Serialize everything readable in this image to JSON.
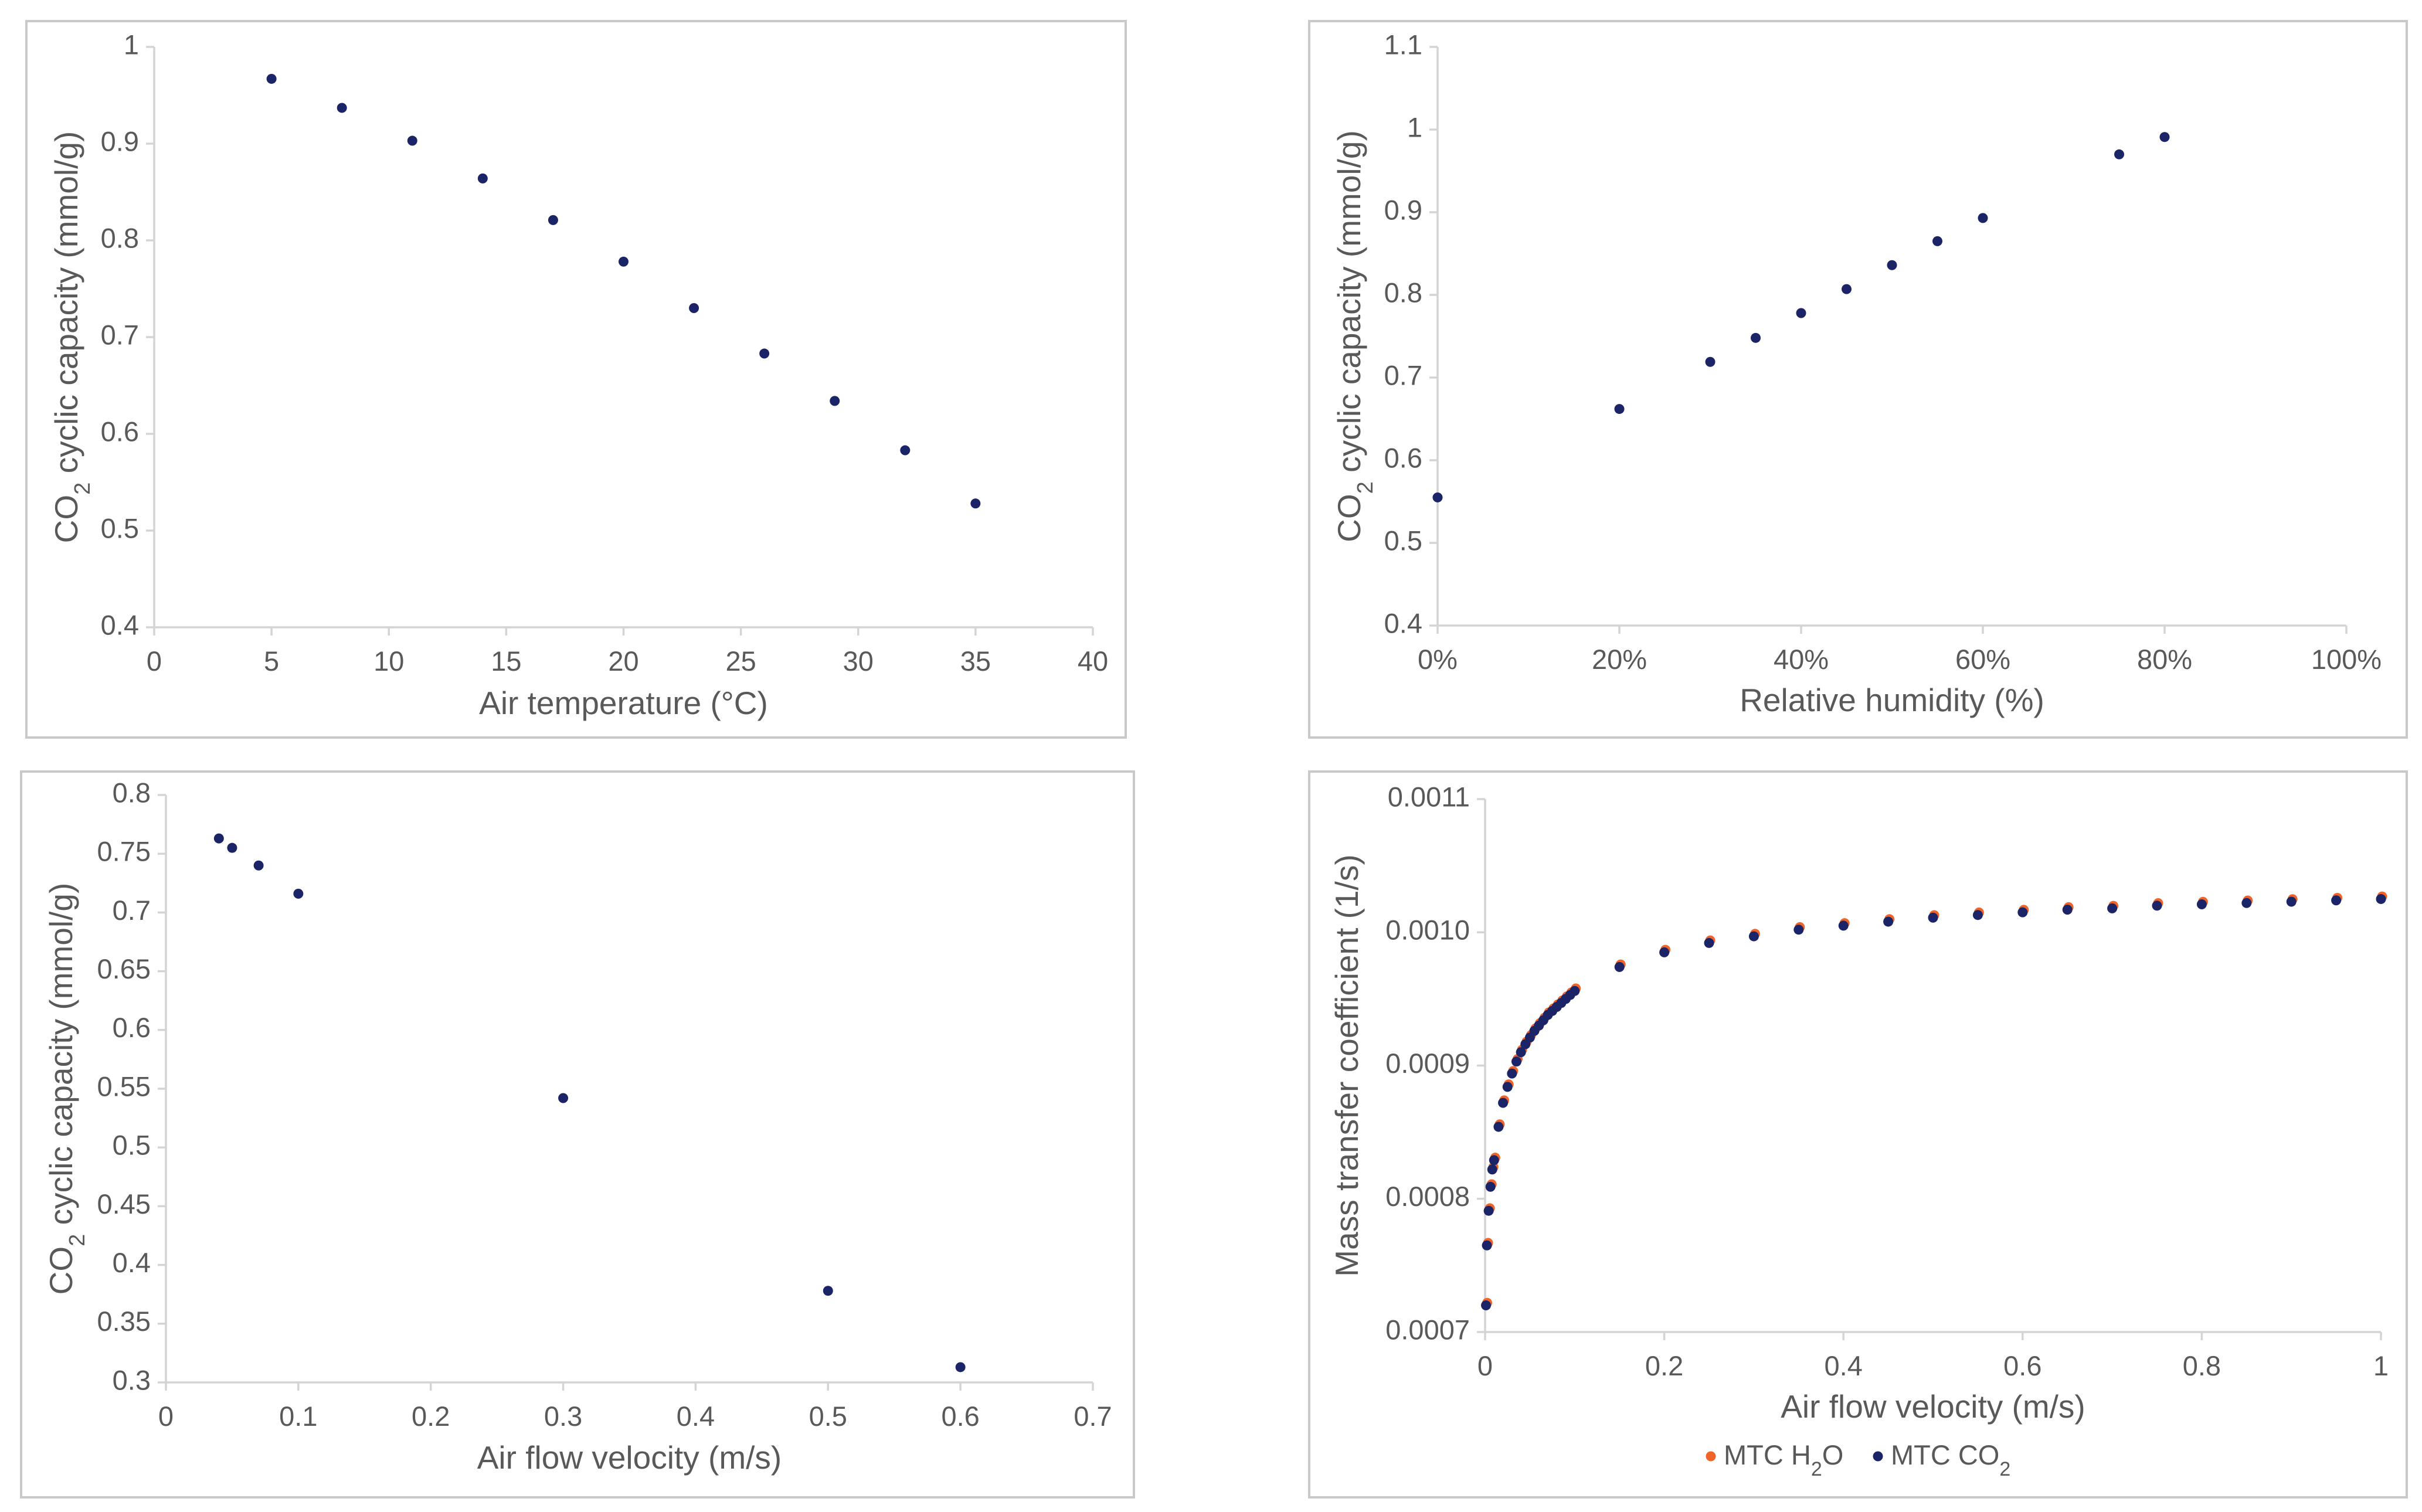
{
  "chart_data": [
    {
      "type": "scatter",
      "xlabel": "Air temperature (°C)",
      "ylabel": "CO2 cyclic capacity (mmol/g)",
      "xlim": [
        0,
        40
      ],
      "ylim": [
        0.4,
        1
      ],
      "xticks": [
        "0",
        "5",
        "10",
        "15",
        "20",
        "25",
        "30",
        "35",
        "40"
      ],
      "yticks": [
        "0.4",
        "0.5",
        "0.6",
        "0.7",
        "0.8",
        "0.9",
        "1"
      ],
      "series": [
        {
          "name": "CO2 cyclic capacity",
          "color": "#1a2466",
          "x": [
            5,
            8,
            11,
            14,
            17,
            20,
            23,
            26,
            29,
            32,
            35
          ],
          "y": [
            0.967,
            0.937,
            0.903,
            0.864,
            0.821,
            0.778,
            0.73,
            0.683,
            0.634,
            0.583,
            0.528
          ]
        }
      ]
    },
    {
      "type": "scatter",
      "xlabel": "Relative humidity (%)",
      "ylabel": "CO2 cyclic capacity (mmol/g)",
      "xlim": [
        0,
        100
      ],
      "ylim": [
        0.4,
        1.1
      ],
      "xticks": [
        "0%",
        "20%",
        "40%",
        "60%",
        "80%",
        "100%"
      ],
      "yticks": [
        "0.4",
        "0.5",
        "0.6",
        "0.7",
        "0.8",
        "0.9",
        "1",
        "1.1"
      ],
      "series": [
        {
          "name": "CO2 cyclic capacity",
          "color": "#1a2466",
          "x": [
            0,
            20,
            30,
            35,
            40,
            45,
            50,
            55,
            60,
            75,
            80
          ],
          "y": [
            0.555,
            0.662,
            0.719,
            0.748,
            0.778,
            0.807,
            0.836,
            0.865,
            0.893,
            0.97,
            0.991
          ]
        }
      ]
    },
    {
      "type": "scatter",
      "xlabel": "Air flow velocity (m/s)",
      "ylabel": "CO2 cyclic capacity (mmol/g)",
      "xlim": [
        0,
        0.7
      ],
      "ylim": [
        0.3,
        0.8
      ],
      "xticks": [
        "0",
        "0.1",
        "0.2",
        "0.3",
        "0.4",
        "0.5",
        "0.6",
        "0.7"
      ],
      "yticks": [
        "0.3",
        "0.35",
        "0.4",
        "0.45",
        "0.5",
        "0.55",
        "0.6",
        "0.65",
        "0.7",
        "0.75",
        "0.8"
      ],
      "series": [
        {
          "name": "CO2 cyclic capacity",
          "color": "#1a2466",
          "x": [
            0.04,
            0.05,
            0.07,
            0.1,
            0.3,
            0.5,
            0.6
          ],
          "y": [
            0.763,
            0.755,
            0.74,
            0.716,
            0.542,
            0.378,
            0.313
          ]
        }
      ]
    },
    {
      "type": "scatter",
      "xlabel": "Air flow velocity (m/s)",
      "ylabel": "Mass transfer coefficient (1/s)",
      "xlim": [
        0,
        1
      ],
      "ylim": [
        0.0007,
        0.0011
      ],
      "xticks": [
        "0",
        "0.2",
        "0.4",
        "0.6",
        "0.8",
        "1"
      ],
      "yticks": [
        "0.0007",
        "0.0008",
        "0.0009",
        "0.0010",
        "0.0011"
      ],
      "legend_position": "bottom",
      "series": [
        {
          "name": "MTC H2O",
          "color": "#f0642a",
          "x": [
            0.001,
            0.002,
            0.004,
            0.006,
            0.008,
            0.01,
            0.015,
            0.02,
            0.025,
            0.03,
            0.035,
            0.04,
            0.045,
            0.05,
            0.055,
            0.06,
            0.065,
            0.07,
            0.075,
            0.08,
            0.085,
            0.09,
            0.095,
            0.1,
            0.15,
            0.2,
            0.25,
            0.3,
            0.35,
            0.4,
            0.45,
            0.5,
            0.55,
            0.6,
            0.65,
            0.7,
            0.75,
            0.8,
            0.85,
            0.9,
            0.95,
            1.0
          ],
          "y": [
            0.000721,
            0.000766,
            0.000792,
            0.00081,
            0.000823,
            0.00083,
            0.000855,
            0.000873,
            0.000885,
            0.000895,
            0.000904,
            0.000911,
            0.000917,
            0.000922,
            0.000927,
            0.000931,
            0.000935,
            0.000939,
            0.000942,
            0.000945,
            0.000948,
            0.000951,
            0.000954,
            0.000957,
            0.000975,
            0.000986,
            0.000993,
            0.000998,
            0.001003,
            0.001006,
            0.001009,
            0.001012,
            0.001014,
            0.001016,
            0.001018,
            0.001019,
            0.001021,
            0.001022,
            0.001023,
            0.001024,
            0.001025,
            0.001026
          ]
        },
        {
          "name": "MTC CO2",
          "color": "#1a2466",
          "x": [
            0.001,
            0.002,
            0.004,
            0.006,
            0.008,
            0.01,
            0.015,
            0.02,
            0.025,
            0.03,
            0.035,
            0.04,
            0.045,
            0.05,
            0.055,
            0.06,
            0.065,
            0.07,
            0.075,
            0.08,
            0.085,
            0.09,
            0.095,
            0.1,
            0.15,
            0.2,
            0.25,
            0.3,
            0.35,
            0.4,
            0.45,
            0.5,
            0.55,
            0.6,
            0.65,
            0.7,
            0.75,
            0.8,
            0.85,
            0.9,
            0.95,
            1.0
          ],
          "y": [
            0.00072,
            0.000765,
            0.000791,
            0.000809,
            0.000822,
            0.000829,
            0.000854,
            0.000872,
            0.000884,
            0.000894,
            0.000903,
            0.00091,
            0.000916,
            0.000921,
            0.000926,
            0.00093,
            0.000934,
            0.000938,
            0.000941,
            0.000944,
            0.000947,
            0.00095,
            0.000953,
            0.000956,
            0.000974,
            0.000985,
            0.000992,
            0.000997,
            0.001002,
            0.001005,
            0.001008,
            0.001011,
            0.001013,
            0.001015,
            0.001017,
            0.001018,
            0.00102,
            0.001021,
            0.001022,
            0.001023,
            0.001024,
            0.001025
          ]
        }
      ]
    }
  ]
}
